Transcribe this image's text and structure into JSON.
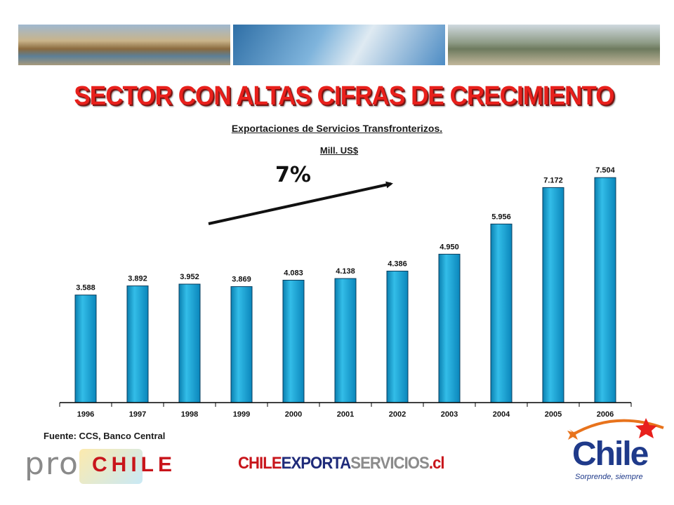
{
  "header": {
    "title": "SECTOR CON ALTAS CIFRAS DE CRECIMIENTO",
    "subtitle": "Exportaciones de Servicios Transfronterizos.",
    "unit": "Mill. US$"
  },
  "annotation": {
    "growth_label": "7%"
  },
  "chart_data": {
    "type": "bar",
    "categories": [
      "1996",
      "1997",
      "1998",
      "1999",
      "2000",
      "2001",
      "2002",
      "2003",
      "2004",
      "2005",
      "2006"
    ],
    "values": [
      3588,
      3892,
      3952,
      3869,
      4083,
      4138,
      4386,
      4950,
      5956,
      7172,
      7504
    ],
    "data_labels": [
      "3.588",
      "3.892",
      "3.952",
      "3.869",
      "4.083",
      "4.138",
      "4.386",
      "4.950",
      "5.956",
      "7.172",
      "7.504"
    ],
    "title": "Exportaciones de Servicios Transfronterizos.",
    "ylabel": "Mill. US$",
    "xlabel": "",
    "ylim": [
      0,
      8000
    ],
    "grid": false,
    "bar_color": "#1aa3d6"
  },
  "footer": {
    "source": "Fuente: CCS, Banco Central",
    "prochile_pro": "pro",
    "prochile_chile": "CHILE",
    "ces_chile": "CHILE",
    "ces_exporta": "EXPORTA",
    "ces_servicios": "SERVICIOS",
    "ces_cl": ".cl",
    "chile_brand": "Chile",
    "chile_tagline": "Sorprende, siempre"
  },
  "colors": {
    "title_red": "#e8201c",
    "brand_blue": "#1f3a8a",
    "bar_blue": "#1aa3d6"
  }
}
